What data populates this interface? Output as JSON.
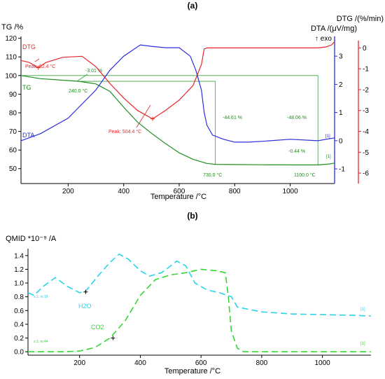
{
  "panels": [
    {
      "panel_label": "(a)",
      "y_left_title": "TG /%",
      "y_right_title_dtg": "DTG /(%/min)",
      "y_right_title_dta": "DTA /(μV/mg)",
      "exo_label": "↑ exo",
      "x_label": "Temperature /°C",
      "series_labels": {
        "dtg": "DTG",
        "tg": "TG",
        "dta": "DTA"
      },
      "annotations": {
        "peak1": "Peak: 92.4 °C",
        "peak2": "Peak: 504.4 °C",
        "loss1": "-3.01 %",
        "temp1": "240.0 °C",
        "loss2": "-44.61 %",
        "loss3": "-48.06 %",
        "loss4": "-0.44 %",
        "temp2": "730.0 °C",
        "temp3": "1100.0 °C",
        "marker": "[1]"
      }
    },
    {
      "panel_label": "(b)",
      "y_title": "QMID *10⁻⁹ /A",
      "x_label": "Temperature /°C",
      "annotations": {
        "h2o": "H2O",
        "co2": "CO2",
        "h2o_small": "s:1; m:18",
        "co2_small": "s:1; m:44",
        "marker": "[1]"
      }
    }
  ],
  "colors": {
    "tg": "#1f8f1f",
    "dtg": "#e8262a",
    "dta": "#2d2de0",
    "h2o": "#29d4e8",
    "co2": "#35d635",
    "axis": "#000000",
    "ref": "#3aa33a"
  },
  "chart_data": [
    {
      "type": "line",
      "title": "(a)",
      "xlabel": "Temperature /°C",
      "xlim": [
        30,
        1160
      ],
      "x_ticks": [
        200,
        400,
        600,
        800,
        1000
      ],
      "axes": {
        "tg": {
          "label": "TG /%",
          "ylim": [
            42,
            121
          ],
          "ticks": [
            50,
            60,
            70,
            80,
            90,
            100,
            110,
            120
          ]
        },
        "dta": {
          "label": "DTA /(μV/mg)",
          "ylim": [
            -1.52,
            3.7
          ],
          "ticks": [
            -1,
            0,
            1,
            2,
            3
          ]
        },
        "dtg": {
          "label": "DTG /(%/min)",
          "ylim": [
            -6.5,
            0.55
          ],
          "ticks": [
            0,
            -1,
            -2,
            -3,
            -4,
            -5,
            -6
          ]
        }
      },
      "series": [
        {
          "name": "DTG",
          "axis": "dtg",
          "x": [
            30,
            60,
            92,
            120,
            180,
            250,
            300,
            350,
            400,
            450,
            504,
            550,
            600,
            650,
            680,
            690,
            700,
            720,
            800,
            900,
            1000,
            1100,
            1130,
            1150,
            1160
          ],
          "y": [
            -0.6,
            -0.7,
            -0.95,
            -0.7,
            -0.45,
            -0.4,
            -0.9,
            -1.7,
            -2.4,
            -3.0,
            -3.4,
            -3.0,
            -2.5,
            -1.8,
            -0.8,
            -0.05,
            0.0,
            0.0,
            0.0,
            0.0,
            0.0,
            0.0,
            0.05,
            0.15,
            0.3
          ]
        },
        {
          "name": "TG",
          "axis": "tg",
          "x": [
            30,
            100,
            200,
            240,
            300,
            350,
            400,
            450,
            500,
            550,
            600,
            650,
            700,
            730,
            800,
            900,
            1000,
            1100,
            1140,
            1160
          ],
          "y": [
            100,
            98.3,
            97.3,
            96.9,
            95.5,
            91.5,
            83.0,
            75.0,
            69.0,
            63.5,
            58.5,
            55.0,
            52.8,
            52.3,
            52.2,
            52.1,
            52.0,
            52.0,
            52.5,
            53.0
          ]
        },
        {
          "name": "DTA",
          "axis": "dta",
          "x": [
            30,
            100,
            200,
            300,
            350,
            400,
            460,
            500,
            550,
            600,
            640,
            660,
            680,
            690,
            700,
            720,
            760,
            800,
            850,
            900,
            1000,
            1100,
            1130,
            1160
          ],
          "y": [
            0.0,
            0.25,
            0.8,
            1.8,
            2.5,
            3.0,
            3.4,
            3.35,
            3.3,
            3.3,
            3.0,
            2.5,
            1.8,
            1.0,
            0.55,
            0.2,
            0.05,
            -0.05,
            -0.05,
            -0.02,
            0.05,
            0.0,
            0.05,
            0.1
          ]
        }
      ]
    },
    {
      "type": "line",
      "title": "(b)",
      "xlabel": "Temperature /°C",
      "ylabel": "QMID *10⁻⁹ /A",
      "xlim": [
        30,
        1160
      ],
      "ylim": [
        -0.05,
        1.5
      ],
      "x_ticks": [
        200,
        400,
        600,
        800,
        1000
      ],
      "y_ticks": [
        0.0,
        0.2,
        0.4,
        0.6,
        0.8,
        1.0,
        1.2,
        1.4
      ],
      "series": [
        {
          "name": "H2O",
          "x": [
            30,
            50,
            80,
            120,
            160,
            200,
            220,
            260,
            300,
            330,
            360,
            400,
            430,
            470,
            500,
            520,
            550,
            580,
            620,
            660,
            700,
            720,
            800,
            900,
            1000,
            1100,
            1160
          ],
          "y": [
            0.86,
            0.82,
            0.95,
            1.08,
            0.95,
            0.86,
            0.88,
            1.1,
            1.3,
            1.42,
            1.35,
            1.18,
            1.1,
            1.15,
            1.25,
            1.32,
            1.25,
            1.0,
            0.9,
            0.86,
            0.8,
            0.65,
            0.58,
            0.55,
            0.54,
            0.53,
            0.52
          ]
        },
        {
          "name": "CO2",
          "x": [
            30,
            150,
            200,
            250,
            300,
            350,
            400,
            450,
            500,
            550,
            600,
            650,
            680,
            690,
            700,
            720,
            740,
            800,
            900,
            1000,
            1100,
            1160
          ],
          "y": [
            0.0,
            0.0,
            0.01,
            0.06,
            0.2,
            0.45,
            0.82,
            1.05,
            1.12,
            1.15,
            1.2,
            1.18,
            1.15,
            0.8,
            0.3,
            0.05,
            0.0,
            0.0,
            0.0,
            0.0,
            0.0,
            0.0
          ]
        }
      ]
    }
  ]
}
